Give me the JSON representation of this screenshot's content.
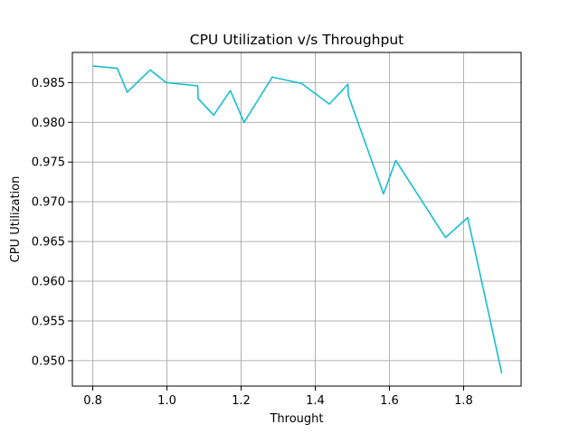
{
  "chart_data": {
    "type": "line",
    "title": "CPU Utilization v/s Throughput",
    "xlabel": "Throught",
    "ylabel": "CPU Utilization",
    "xlim": [
      0.745,
      1.955
    ],
    "ylim": [
      0.9468,
      0.9888
    ],
    "xticks": [
      0.8,
      1.0,
      1.2,
      1.4,
      1.6,
      1.8
    ],
    "xtick_labels": [
      "0.8",
      "1.0",
      "1.2",
      "1.4",
      "1.6",
      "1.8"
    ],
    "yticks": [
      0.95,
      0.955,
      0.96,
      0.965,
      0.97,
      0.975,
      0.98,
      0.985
    ],
    "ytick_labels": [
      "0.950",
      "0.955",
      "0.960",
      "0.965",
      "0.970",
      "0.975",
      "0.980",
      "0.985"
    ],
    "grid": true,
    "line_color": "#17becf",
    "series": [
      {
        "x": [
          0.8,
          0.866,
          0.893,
          0.948,
          0.955,
          0.998,
          1.083,
          1.084,
          1.126,
          1.171,
          1.208,
          1.284,
          1.363,
          1.438,
          1.488,
          1.489,
          1.584,
          1.617,
          1.751,
          1.811,
          1.903
        ],
        "y": [
          0.9871,
          0.9868,
          0.9838,
          0.9863,
          0.9866,
          0.985,
          0.9846,
          0.983,
          0.9809,
          0.984,
          0.98,
          0.9857,
          0.9849,
          0.9823,
          0.9848,
          0.9834,
          0.971,
          0.9752,
          0.9655,
          0.968,
          0.9484
        ]
      }
    ]
  }
}
